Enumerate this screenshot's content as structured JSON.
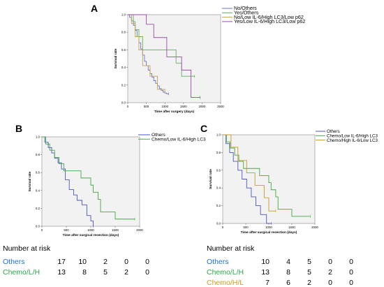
{
  "panels": [
    {
      "letter": "A"
    },
    {
      "letter": "B"
    },
    {
      "letter": "C"
    }
  ],
  "chart_data": [
    {
      "panel": "A",
      "type": "line",
      "step": true,
      "xlabel": "Time after surgery (days)",
      "ylabel": "Survival rate",
      "xlim": [
        0,
        2500
      ],
      "ylim": [
        0,
        1.0
      ],
      "xticks": [
        "0",
        "500",
        "1000",
        "1500",
        "2000",
        "2500"
      ],
      "yticks": [
        "0.0",
        "0.2",
        "0.4",
        "0.6",
        "0.8",
        "1.0"
      ],
      "series": [
        {
          "name": "No/Others",
          "color": "#6a74c9",
          "x": [
            0,
            50,
            100,
            150,
            200,
            250,
            300,
            350,
            400,
            450,
            500,
            550,
            600,
            650,
            700,
            750,
            800,
            850,
            900,
            950,
            1000,
            1050,
            1100
          ],
          "y": [
            1.0,
            0.97,
            0.93,
            0.88,
            0.82,
            0.75,
            0.68,
            0.61,
            0.54,
            0.47,
            0.42,
            0.37,
            0.33,
            0.29,
            0.25,
            0.22,
            0.19,
            0.16,
            0.14,
            0.12,
            0.11,
            0.1,
            0.1
          ]
        },
        {
          "name": "Yes/Others",
          "color": "#5bb05b",
          "x": [
            0,
            150,
            200,
            300,
            400,
            600,
            1000,
            1300,
            1450,
            1700,
            1800
          ],
          "y": [
            1.0,
            0.92,
            0.83,
            0.75,
            0.6,
            0.6,
            0.6,
            0.45,
            0.3,
            0.3,
            0.3
          ]
        },
        {
          "name": "No/Low IL-6/High LC3/Low p62",
          "color": "#c4a24e",
          "x": [
            0,
            100,
            200,
            300,
            400,
            600,
            800,
            1000
          ],
          "y": [
            1.0,
            0.9,
            0.75,
            0.6,
            0.42,
            0.3,
            0.15,
            0.12
          ]
        },
        {
          "name": "Yes/Low IL-6/High LC3/Low p62",
          "color": "#9a4aaa",
          "x": [
            0,
            200,
            500,
            700,
            1050,
            1300,
            1450,
            1700,
            1950
          ],
          "y": [
            1.0,
            1.0,
            0.89,
            0.74,
            0.52,
            0.52,
            0.37,
            0.06,
            0.06
          ]
        }
      ],
      "legend": "top-right"
    },
    {
      "panel": "B",
      "type": "line",
      "step": true,
      "xlabel": "Time after surgical resection (days)",
      "ylabel": "Survival rate",
      "xlim": [
        0,
        2000
      ],
      "ylim": [
        0,
        1.0
      ],
      "xticks": [
        "0",
        "500",
        "1000",
        "1500",
        "2000"
      ],
      "yticks": [
        "0.0",
        "0.2",
        "0.4",
        "0.6",
        "0.8",
        "1.0"
      ],
      "series": [
        {
          "name": "Others",
          "color": "#4a55c3",
          "x": [
            0,
            60,
            130,
            200,
            260,
            330,
            400,
            480,
            560,
            650,
            720,
            820,
            920,
            1000,
            1050
          ],
          "y": [
            1.0,
            0.94,
            0.88,
            0.82,
            0.76,
            0.71,
            0.64,
            0.52,
            0.41,
            0.35,
            0.29,
            0.24,
            0.12,
            0.06,
            0.0
          ]
        },
        {
          "name": "Chemo/Low IL-6/High LC3",
          "color": "#44a844",
          "x": [
            0,
            80,
            160,
            260,
            350,
            450,
            600,
            800,
            1000,
            1050,
            1150,
            1200,
            1500,
            1900
          ],
          "y": [
            1.0,
            0.92,
            0.85,
            0.77,
            0.7,
            0.62,
            0.62,
            0.54,
            0.46,
            0.38,
            0.3,
            0.16,
            0.08,
            0.08
          ]
        }
      ],
      "legend": "top-right"
    },
    {
      "panel": "C",
      "type": "line",
      "step": true,
      "xlabel": "Time after surgical resection (days)",
      "ylabel": "Survival rate",
      "xlim": [
        0,
        2000
      ],
      "ylim": [
        0,
        1.0
      ],
      "xticks": [
        "0",
        "500",
        "1000",
        "1500",
        "2000"
      ],
      "yticks": [
        "0.0",
        "0.2",
        "0.4",
        "0.6",
        "0.8",
        "1.0"
      ],
      "series": [
        {
          "name": "Others",
          "color": "#4a55c3",
          "x": [
            0,
            70,
            150,
            230,
            330,
            420,
            520,
            620,
            720,
            820,
            950,
            1050
          ],
          "y": [
            1.0,
            0.9,
            0.8,
            0.7,
            0.6,
            0.5,
            0.4,
            0.3,
            0.2,
            0.1,
            0.0,
            0.0
          ]
        },
        {
          "name": "Chemo/Low IL-6/High LC3",
          "color": "#44a844",
          "x": [
            0,
            80,
            160,
            260,
            350,
            450,
            600,
            800,
            1000,
            1050,
            1150,
            1200,
            1500,
            1900
          ],
          "y": [
            1.0,
            0.92,
            0.85,
            0.77,
            0.7,
            0.62,
            0.62,
            0.54,
            0.46,
            0.38,
            0.3,
            0.16,
            0.08,
            0.08
          ]
        },
        {
          "name": "Chemo/High IL-6/Low LC3",
          "color": "#c49a2a",
          "x": [
            0,
            180,
            330,
            520,
            700,
            900,
            1000,
            1150
          ],
          "y": [
            1.0,
            0.86,
            0.71,
            0.57,
            0.43,
            0.29,
            0.14,
            0.14
          ]
        }
      ],
      "legend": "top-right"
    }
  ],
  "risk_tables": [
    {
      "title": "Number at risk",
      "rows": [
        {
          "label": "Others",
          "color": "#1f6fd6",
          "values": [
            "17",
            "10",
            "2",
            "0",
            "0"
          ]
        },
        {
          "label": "Chemo/L/H",
          "color": "#2aa84a",
          "values": [
            "13",
            "8",
            "5",
            "2",
            "0"
          ]
        }
      ]
    },
    {
      "title": "Number at risk",
      "rows": [
        {
          "label": "Others",
          "color": "#1f6fd6",
          "values": [
            "10",
            "4",
            "5",
            "0",
            "0"
          ]
        },
        {
          "label": "Chemo/L/H",
          "color": "#2aa84a",
          "values": [
            "13",
            "8",
            "5",
            "2",
            "0"
          ]
        },
        {
          "label": "Chemo/H/L",
          "color": "#d39a1a",
          "values": [
            "7",
            "6",
            "2",
            "0",
            "0"
          ]
        }
      ]
    }
  ]
}
